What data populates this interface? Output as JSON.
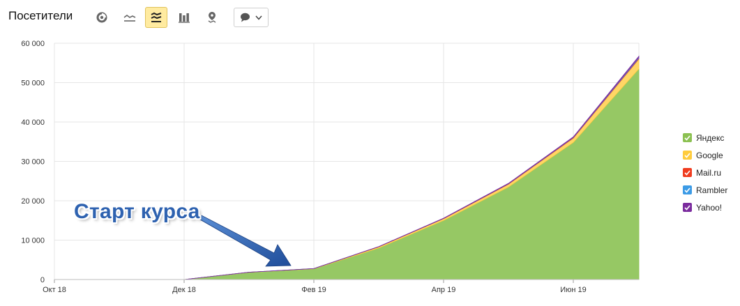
{
  "header": {
    "title": "Посетители",
    "toolbar": [
      {
        "name": "pie-chart-icon",
        "active": false
      },
      {
        "name": "line-chart-icon",
        "active": false
      },
      {
        "name": "stacked-area-icon",
        "active": true
      },
      {
        "name": "bar-chart-icon",
        "active": false
      },
      {
        "name": "map-pin-icon",
        "active": false
      }
    ],
    "dropdown": {
      "icon": "comment-icon",
      "arrow": "chevron-down-icon"
    }
  },
  "annotation": {
    "text": "Старт курса",
    "color": "#2e62b0"
  },
  "chart_data": {
    "type": "area",
    "stacked": true,
    "grid": true,
    "legend_position": "right",
    "x_ticks": [
      "Окт 18",
      "Дек 18",
      "Фев 19",
      "Апр 19",
      "Июн 19"
    ],
    "x": [
      "Дек 18",
      "Янв 19",
      "Фев 19",
      "Мар 19",
      "Апр 19",
      "Май 19",
      "Июн 19",
      "Июл 19"
    ],
    "ylim": [
      0,
      60000
    ],
    "y_ticks": [
      "0",
      "10 000",
      "20 000",
      "30 000",
      "40 000",
      "50 000",
      "60 000"
    ],
    "series": [
      {
        "name": "Яндекс",
        "color": "#8cc152",
        "fill": "#96c864",
        "values": [
          0,
          1800,
          2700,
          8000,
          15000,
          23500,
          34800,
          53500
        ]
      },
      {
        "name": "Google",
        "color": "#ffcc3d",
        "fill": "#ffd666",
        "values": [
          0,
          40,
          60,
          300,
          450,
          700,
          1100,
          2500
        ]
      },
      {
        "name": "Mail.ru",
        "color": "#f03c1f",
        "fill": "#f06a55",
        "values": [
          0,
          5,
          10,
          30,
          50,
          90,
          120,
          200
        ]
      },
      {
        "name": "Rambler",
        "color": "#3c9be6",
        "fill": "#6fb3ea",
        "values": [
          0,
          5,
          10,
          20,
          30,
          50,
          80,
          200
        ]
      },
      {
        "name": "Yahoo!",
        "color": "#7b2c9e",
        "fill": "#9552b5",
        "values": [
          0,
          5,
          10,
          20,
          40,
          80,
          120,
          300
        ]
      }
    ]
  }
}
